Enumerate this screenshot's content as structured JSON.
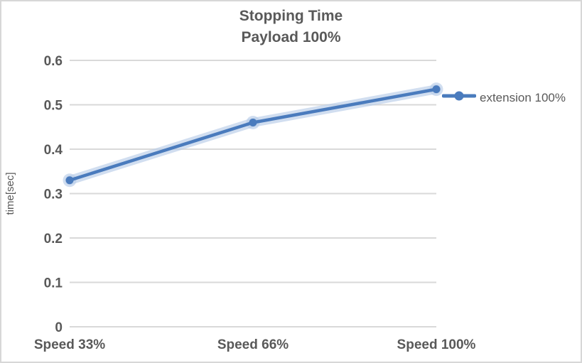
{
  "window": {
    "background": "#ffffff",
    "border_color": "#d7d7d7",
    "text_color": "#595959"
  },
  "chart_data": {
    "type": "line",
    "title": "Stopping Time",
    "subtitle": "Payload 100%",
    "categories": [
      "Speed 33%",
      "Speed 66%",
      "Speed 100%"
    ],
    "series": [
      {
        "name": "extension 100%",
        "values": [
          0.33,
          0.46,
          0.535
        ],
        "color": "#4a7bbd",
        "glow_color": "#b9cde8",
        "marker": "circle"
      }
    ],
    "xlabel": "",
    "ylabel": "time[sec]",
    "ylim": [
      0,
      0.6
    ],
    "yticks": [
      0,
      0.1,
      0.2,
      0.3,
      0.4,
      0.5,
      0.6
    ],
    "ytick_labels": [
      "0",
      "0.1",
      "0.2",
      "0.3",
      "0.4",
      "0.5",
      "0.6"
    ],
    "grid": true,
    "gridline_color": "#d9d9d9",
    "legend_position": "right"
  }
}
